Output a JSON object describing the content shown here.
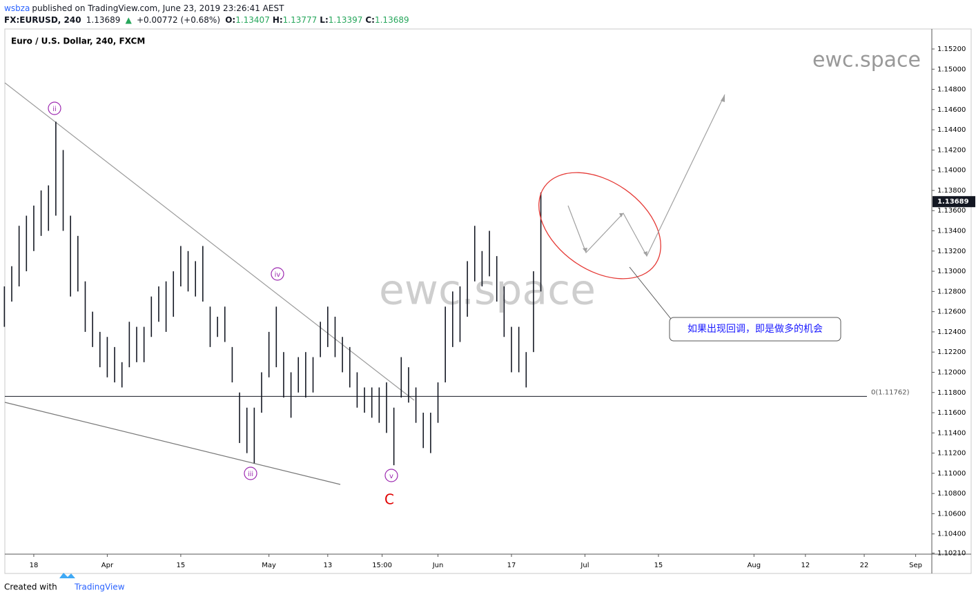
{
  "header": {
    "author": "wsbza",
    "published": "published on TradingView.com, June 23, 2019 23:26:41 AEST",
    "symbol": "FX:EURUSD, 240",
    "price": "1.13689",
    "arrow": "▲",
    "change": "+0.00772 (+0.68%)",
    "ohlc": [
      {
        "key": "O:",
        "value": "1.13407"
      },
      {
        "key": "H:",
        "value": "1.13777"
      },
      {
        "key": "L:",
        "value": "1.13397"
      },
      {
        "key": "C:",
        "value": "1.13689"
      }
    ]
  },
  "chart_data": {
    "type": "ohlc",
    "legend": "Euro / U.S. Dollar, 240, FXCM",
    "watermark": "ewc.space",
    "corner_mark": "ewc.space",
    "color": "#131722",
    "x": [
      -4,
      -3,
      -2,
      -1,
      0,
      1,
      2,
      3,
      4,
      5,
      6,
      7,
      8,
      9,
      10,
      11,
      12,
      13,
      14,
      15,
      16,
      17,
      18,
      19,
      20,
      21,
      22,
      23,
      24,
      25,
      26,
      27,
      28,
      29,
      30,
      31,
      32,
      33,
      34,
      35,
      36,
      37,
      38,
      39,
      40,
      41,
      42,
      43,
      44,
      45,
      46,
      47,
      48,
      49,
      50,
      51,
      52,
      53,
      54,
      55,
      56,
      57,
      58,
      59,
      60,
      61,
      62,
      63,
      64,
      65,
      66,
      67,
      68,
      69
    ],
    "high": [
      1.1285,
      1.1305,
      1.1345,
      1.1355,
      1.1365,
      1.138,
      1.1385,
      1.1448,
      1.142,
      1.1355,
      1.1335,
      1.129,
      1.126,
      1.124,
      1.1235,
      1.1225,
      1.121,
      1.125,
      1.1245,
      1.1245,
      1.1275,
      1.1285,
      1.129,
      1.13,
      1.1325,
      1.132,
      1.131,
      1.1325,
      1.1265,
      1.1255,
      1.1265,
      1.1225,
      1.118,
      1.1165,
      1.1165,
      1.12,
      1.124,
      1.1265,
      1.122,
      1.12,
      1.1215,
      1.122,
      1.1215,
      1.125,
      1.1265,
      1.1255,
      1.1235,
      1.1225,
      1.12,
      1.1185,
      1.1185,
      1.1185,
      1.119,
      1.1165,
      1.1215,
      1.1205,
      1.1185,
      1.116,
      1.116,
      1.119,
      1.1265,
      1.128,
      1.1285,
      1.131,
      1.1345,
      1.132,
      1.134,
      1.1315,
      1.1285,
      1.1245,
      1.1245,
      1.122,
      1.13,
      1.1378
    ],
    "low": [
      1.1245,
      1.127,
      1.1285,
      1.13,
      1.132,
      1.1335,
      1.134,
      1.1355,
      1.134,
      1.1275,
      1.128,
      1.124,
      1.1225,
      1.1205,
      1.1195,
      1.119,
      1.1185,
      1.1205,
      1.121,
      1.121,
      1.1235,
      1.125,
      1.124,
      1.1255,
      1.1285,
      1.128,
      1.1275,
      1.127,
      1.1225,
      1.1235,
      1.123,
      1.119,
      1.113,
      1.112,
      1.111,
      1.116,
      1.1195,
      1.1205,
      1.1175,
      1.1155,
      1.118,
      1.1175,
      1.118,
      1.1215,
      1.1225,
      1.1215,
      1.12,
      1.1185,
      1.1165,
      1.116,
      1.1155,
      1.115,
      1.114,
      1.1108,
      1.1175,
      1.117,
      1.115,
      1.1125,
      1.112,
      1.115,
      1.119,
      1.1225,
      1.123,
      1.1255,
      1.129,
      1.1285,
      1.1295,
      1.127,
      1.1235,
      1.12,
      1.12,
      1.1185,
      1.122,
      1.128
    ],
    "xlim": [
      -3.94,
      122.2
    ],
    "xticks": [
      {
        "value": 0,
        "label": "18"
      },
      {
        "value": 10,
        "label": "Apr"
      },
      {
        "value": 20,
        "label": "15"
      },
      {
        "value": 32,
        "label": "May"
      },
      {
        "value": 40,
        "label": "13"
      },
      {
        "value": 47.4,
        "label": "15:00"
      },
      {
        "value": 55,
        "label": "Jun"
      },
      {
        "value": 65,
        "label": "17"
      },
      {
        "value": 75,
        "label": "Jul"
      },
      {
        "value": 85,
        "label": "15"
      },
      {
        "value": 98,
        "label": "Aug"
      },
      {
        "value": 105,
        "label": "12"
      },
      {
        "value": 113,
        "label": "22"
      },
      {
        "value": 120,
        "label": "Sep"
      }
    ],
    "ylim": [
      1.102,
      1.15398
    ],
    "yticks": [
      {
        "value": 1.1021,
        "label": "1.10210"
      },
      {
        "value": 1.104,
        "label": "1.10400"
      },
      {
        "value": 1.106,
        "label": "1.10600"
      },
      {
        "value": 1.108,
        "label": "1.10800"
      },
      {
        "value": 1.11,
        "label": "1.11000"
      },
      {
        "value": 1.112,
        "label": "1.11200"
      },
      {
        "value": 1.114,
        "label": "1.11400"
      },
      {
        "value": 1.116,
        "label": "1.11600"
      },
      {
        "value": 1.118,
        "label": "1.11800"
      },
      {
        "value": 1.12,
        "label": "1.12000"
      },
      {
        "value": 1.122,
        "label": "1.12200"
      },
      {
        "value": 1.124,
        "label": "1.12400"
      },
      {
        "value": 1.126,
        "label": "1.12600"
      },
      {
        "value": 1.128,
        "label": "1.12800"
      },
      {
        "value": 1.13,
        "label": "1.13000"
      },
      {
        "value": 1.132,
        "label": "1.13200"
      },
      {
        "value": 1.134,
        "label": "1.13400"
      },
      {
        "value": 1.136,
        "label": "1.13600"
      },
      {
        "value": 1.138,
        "label": "1.13800"
      },
      {
        "value": 1.14,
        "label": "1.14000"
      },
      {
        "value": 1.142,
        "label": "1.14200"
      },
      {
        "value": 1.144,
        "label": "1.14400"
      },
      {
        "value": 1.146,
        "label": "1.14600"
      },
      {
        "value": 1.148,
        "label": "1.14800"
      },
      {
        "value": 1.15,
        "label": "1.15000"
      },
      {
        "value": 1.152,
        "label": "1.15200"
      }
    ],
    "last_price": 1.13689,
    "level": {
      "value": 1.11762,
      "label": "0(1.11762)"
    },
    "waves": [
      "ii",
      "iii",
      "iv",
      "v",
      "C"
    ],
    "annotation": "如果出现回调，即是做多的机会"
  },
  "footer": {
    "created": "Created with",
    "brand": "TradingView"
  }
}
